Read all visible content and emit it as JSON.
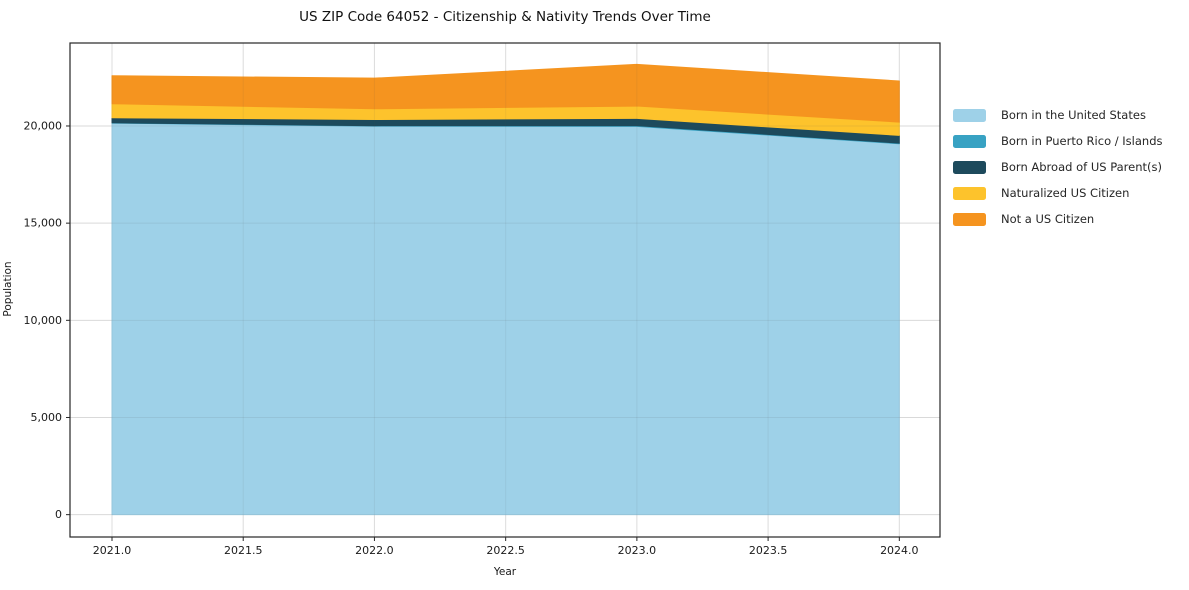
{
  "chart_data": {
    "type": "area",
    "stacked": true,
    "title": "US ZIP Code 64052 - Citizenship & Nativity Trends Over Time",
    "xlabel": "Year",
    "ylabel": "Population",
    "x": [
      2021,
      2022,
      2023,
      2024
    ],
    "series": [
      {
        "name": "Born in the United States",
        "color": "#9ed1e8",
        "values": [
          20150,
          19990,
          19980,
          19085
        ]
      },
      {
        "name": "Born in Puerto Rico / Islands",
        "color": "#38a2c3",
        "values": [
          15,
          25,
          40,
          30
        ]
      },
      {
        "name": "Born Abroad of US Parent(s)",
        "color": "#1d4a5c",
        "values": [
          260,
          320,
          370,
          400
        ]
      },
      {
        "name": "Naturalized US Citizen",
        "color": "#fdc32c",
        "values": [
          720,
          550,
          635,
          685
        ]
      },
      {
        "name": "Not a US Citizen",
        "color": "#f5941f",
        "values": [
          1440,
          1575,
          2145,
          2115
        ]
      }
    ],
    "x_ticks": [
      2021.0,
      2021.5,
      2022.0,
      2022.5,
      2023.0,
      2023.5,
      2024.0
    ],
    "x_tick_labels": [
      "2021.0",
      "2021.5",
      "2022.0",
      "2022.5",
      "2023.0",
      "2023.5",
      "2024.0"
    ],
    "y_ticks": [
      0,
      5000,
      10000,
      15000,
      20000
    ],
    "y_tick_labels": [
      "0",
      "5,000",
      "10,000",
      "15,000",
      "20,000"
    ],
    "xlim": [
      2020.84,
      2024.155
    ],
    "ylim": [
      -1150,
      24270
    ],
    "grid": true,
    "legend_position": "right",
    "colors": {
      "grid": "#e9e9e9",
      "spine": "#262626",
      "tick_text": "#1a1a1a",
      "background": "#ffffff"
    }
  }
}
